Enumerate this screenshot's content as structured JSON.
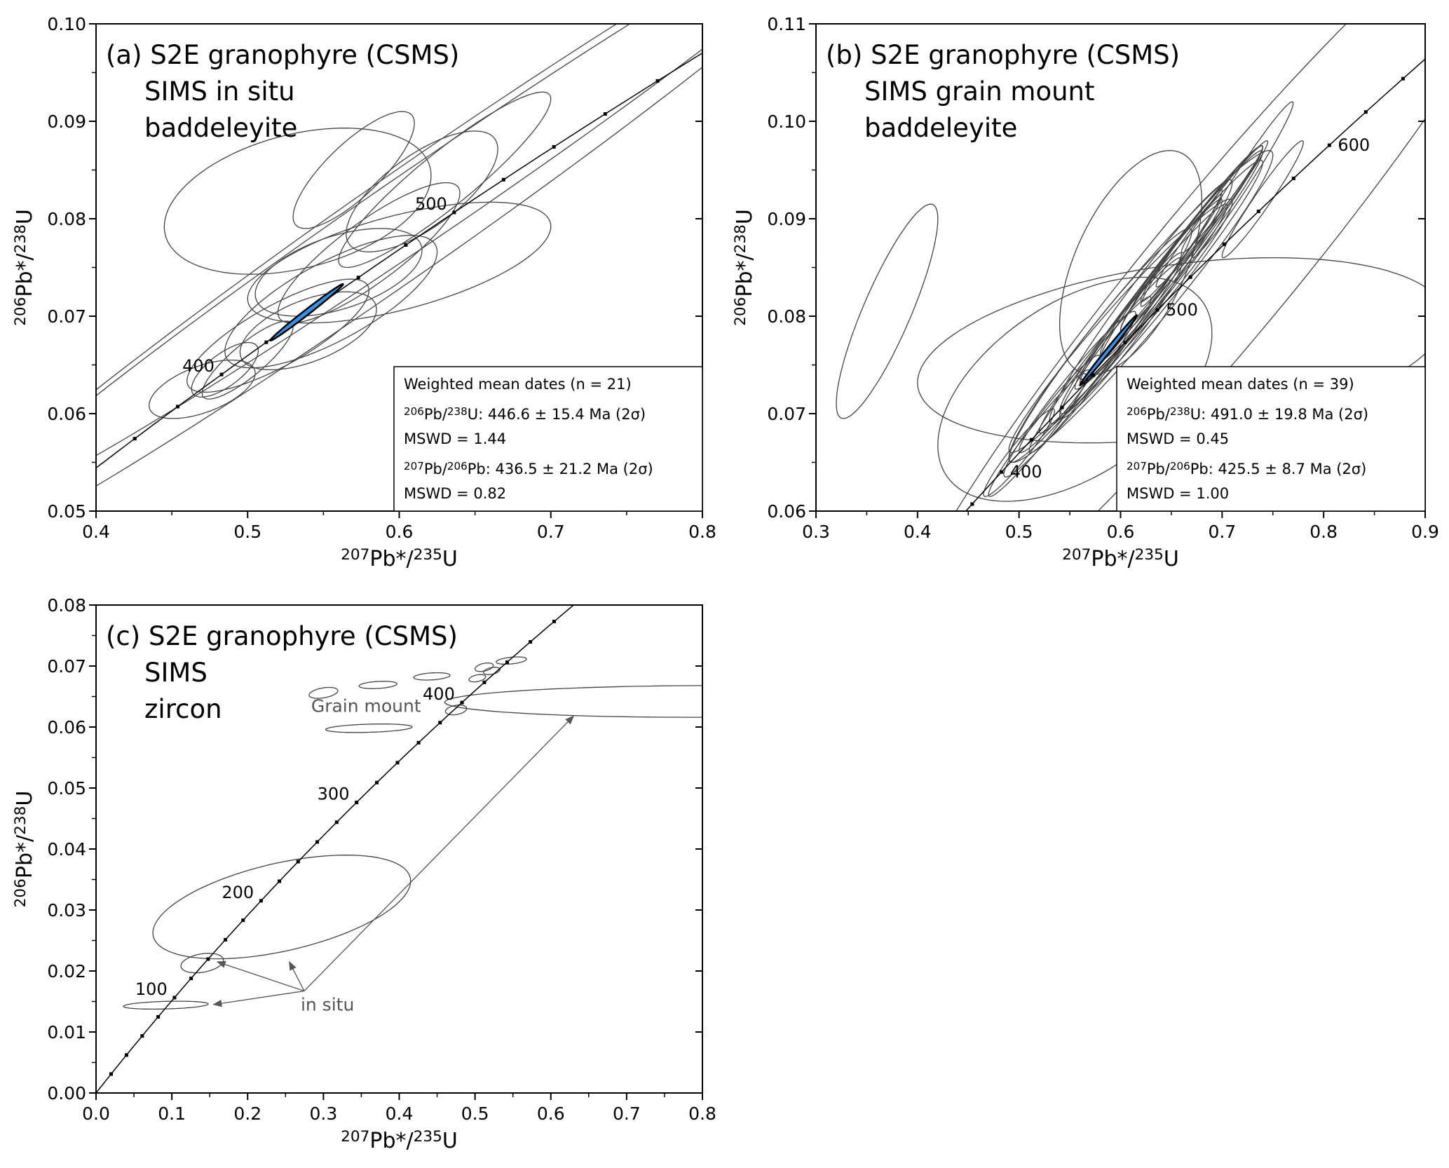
{
  "chart_data": [
    {
      "id": "a",
      "type": "scatter",
      "subtype": "concordia-error-ellipses",
      "title_lines": [
        "(a) S2E granophyre (CSMS)",
        "SIMS in situ",
        "baddeleyite"
      ],
      "xlabel": {
        "sup": "207",
        "main": "Pb*/",
        "sup2": "235",
        "main2": "U"
      },
      "ylabel": {
        "sup": "206",
        "main": "Pb*/",
        "sup2": "238",
        "main2": "U"
      },
      "xlim": [
        0.4,
        0.8
      ],
      "ylim": [
        0.05,
        0.1
      ],
      "xticks": [
        "0.4",
        "0.5",
        "0.6",
        "0.7",
        "0.8"
      ],
      "yticks": [
        "0.05",
        "0.06",
        "0.07",
        "0.08",
        "0.09",
        "0.10"
      ],
      "concordia_age_labels": [
        400,
        500
      ],
      "concordia_tick_interval_ma": 20,
      "mean_color": "#3a8ee6",
      "mean_ellipse": {
        "x": 0.539,
        "sx": 0.024,
        "y": 0.0704,
        "sy": 0.0029,
        "rho": 0.993
      },
      "ellipses": [
        {
          "x": 0.6,
          "sx": 0.33,
          "y": 0.079,
          "sy": 0.036,
          "rho": 0.985
        },
        {
          "x": 0.62,
          "sx": 0.3,
          "y": 0.082,
          "sy": 0.032,
          "rho": 0.99
        },
        {
          "x": 0.533,
          "sx": 0.088,
          "y": 0.0818,
          "sy": 0.0075,
          "rho": 0.35
        },
        {
          "x": 0.6,
          "sx": 0.1,
          "y": 0.0755,
          "sy": 0.0062,
          "rho": 0.6
        },
        {
          "x": 0.615,
          "sx": 0.05,
          "y": 0.0828,
          "sy": 0.0062,
          "rho": 0.7
        },
        {
          "x": 0.555,
          "sx": 0.07,
          "y": 0.0715,
          "sy": 0.0068,
          "rho": 0.75
        },
        {
          "x": 0.52,
          "sx": 0.06,
          "y": 0.068,
          "sy": 0.0058,
          "rho": 0.8
        },
        {
          "x": 0.58,
          "sx": 0.06,
          "y": 0.0765,
          "sy": 0.0072,
          "rho": 0.85
        },
        {
          "x": 0.56,
          "sx": 0.055,
          "y": 0.0745,
          "sy": 0.0045,
          "rho": 0.5
        },
        {
          "x": 0.47,
          "sx": 0.035,
          "y": 0.0625,
          "sy": 0.003,
          "rho": 0.55
        },
        {
          "x": 0.485,
          "sx": 0.022,
          "y": 0.0645,
          "sy": 0.0028,
          "rho": 0.7
        },
        {
          "x": 0.5,
          "sx": 0.03,
          "y": 0.0655,
          "sy": 0.004,
          "rho": 0.85
        },
        {
          "x": 0.54,
          "sx": 0.045,
          "y": 0.0685,
          "sy": 0.004,
          "rho": 0.55
        },
        {
          "x": 0.63,
          "sx": 0.07,
          "y": 0.084,
          "sy": 0.009,
          "rho": 0.92
        },
        {
          "x": 0.57,
          "sx": 0.04,
          "y": 0.085,
          "sy": 0.006,
          "rho": 0.8
        }
      ],
      "legend": {
        "placement": "bottom-right",
        "line1": "Weighted mean dates (n = 21)",
        "r1_sup1": "206",
        "r1_a": "Pb/",
        "r1_sup2": "238",
        "r1_b": "U: 446.6 ± 15.4 Ma (2σ)",
        "mswd1": "MSWD = 1.44",
        "r2_sup1": "207",
        "r2_a": "Pb/",
        "r2_sup2": "206",
        "r2_b": "Pb: 436.5 ± 21.2 Ma (2σ)",
        "mswd2": "MSWD = 0.82"
      }
    },
    {
      "id": "b",
      "type": "scatter",
      "subtype": "concordia-error-ellipses",
      "title_lines": [
        "(b) S2E granophyre (CSMS)",
        "SIMS grain mount",
        "baddeleyite"
      ],
      "xlabel": {
        "sup": "207",
        "main": "Pb*/",
        "sup2": "235",
        "main2": "U"
      },
      "ylabel": {
        "sup": "206",
        "main": "Pb*/",
        "sup2": "238",
        "main2": "U"
      },
      "xlim": [
        0.3,
        0.9
      ],
      "ylim": [
        0.06,
        0.11
      ],
      "xticks": [
        "0.3",
        "0.4",
        "0.5",
        "0.6",
        "0.7",
        "0.8",
        "0.9"
      ],
      "yticks": [
        "0.06",
        "0.07",
        "0.08",
        "0.09",
        "0.10",
        "0.11"
      ],
      "concordia_age_labels": [
        400,
        500,
        600
      ],
      "concordia_tick_interval_ma": 20,
      "mean_color": "#3a8ee6",
      "mean_ellipse": {
        "x": 0.588,
        "sx": 0.028,
        "y": 0.0765,
        "sy": 0.0036,
        "rho": 0.995
      },
      "ellipses": [
        {
          "x": 0.37,
          "sx": 0.05,
          "y": 0.0805,
          "sy": 0.011,
          "rho": 0.86
        },
        {
          "x": 0.66,
          "sx": 0.26,
          "y": 0.0765,
          "sy": 0.0095,
          "rho": 0.35
        },
        {
          "x": 0.555,
          "sx": 0.135,
          "y": 0.0725,
          "sy": 0.0115,
          "rho": 0.5
        },
        {
          "x": 0.61,
          "sx": 0.07,
          "y": 0.0855,
          "sy": 0.0115,
          "rho": 0.55
        },
        {
          "x": 0.7,
          "sx": 0.32,
          "y": 0.085,
          "sy": 0.04,
          "rho": 0.96
        },
        {
          "x": 0.62,
          "sx": 0.13,
          "y": 0.081,
          "sy": 0.016,
          "rho": 0.97
        },
        {
          "x": 0.6,
          "sx": 0.11,
          "y": 0.079,
          "sy": 0.013,
          "rho": 0.975
        },
        {
          "x": 0.64,
          "sx": 0.1,
          "y": 0.083,
          "sy": 0.013,
          "rho": 0.98
        },
        {
          "x": 0.65,
          "sx": 0.09,
          "y": 0.085,
          "sy": 0.012,
          "rho": 0.985
        },
        {
          "x": 0.66,
          "sx": 0.08,
          "y": 0.0865,
          "sy": 0.011,
          "rho": 0.985
        },
        {
          "x": 0.67,
          "sx": 0.07,
          "y": 0.088,
          "sy": 0.0095,
          "rho": 0.985
        },
        {
          "x": 0.63,
          "sx": 0.075,
          "y": 0.082,
          "sy": 0.0095,
          "rho": 0.98
        },
        {
          "x": 0.59,
          "sx": 0.07,
          "y": 0.077,
          "sy": 0.009,
          "rho": 0.98
        },
        {
          "x": 0.57,
          "sx": 0.06,
          "y": 0.074,
          "sy": 0.008,
          "rho": 0.975
        },
        {
          "x": 0.55,
          "sx": 0.065,
          "y": 0.072,
          "sy": 0.0085,
          "rho": 0.97
        },
        {
          "x": 0.52,
          "sx": 0.05,
          "y": 0.068,
          "sy": 0.0065,
          "rho": 0.97
        },
        {
          "x": 0.5,
          "sx": 0.035,
          "y": 0.066,
          "sy": 0.0045,
          "rho": 0.95
        },
        {
          "x": 0.68,
          "sx": 0.06,
          "y": 0.0895,
          "sy": 0.008,
          "rho": 0.985
        },
        {
          "x": 0.69,
          "sx": 0.055,
          "y": 0.0905,
          "sy": 0.0075,
          "rho": 0.985
        },
        {
          "x": 0.65,
          "sx": 0.05,
          "y": 0.0855,
          "sy": 0.007,
          "rho": 0.985
        },
        {
          "x": 0.61,
          "sx": 0.05,
          "y": 0.08,
          "sy": 0.0065,
          "rho": 0.98
        },
        {
          "x": 0.6,
          "sx": 0.06,
          "y": 0.0775,
          "sy": 0.008,
          "rho": 0.97
        },
        {
          "x": 0.7,
          "sx": 0.04,
          "y": 0.092,
          "sy": 0.0055,
          "rho": 0.98
        },
        {
          "x": 0.72,
          "sx": 0.05,
          "y": 0.094,
          "sy": 0.008,
          "rho": 0.98
        },
        {
          "x": 0.58,
          "sx": 0.09,
          "y": 0.077,
          "sy": 0.012,
          "rho": 0.97
        },
        {
          "x": 0.62,
          "sx": 0.09,
          "y": 0.0815,
          "sy": 0.0125,
          "rho": 0.975
        },
        {
          "x": 0.74,
          "sx": 0.04,
          "y": 0.092,
          "sy": 0.006,
          "rho": 0.97
        },
        {
          "x": 0.54,
          "sx": 0.04,
          "y": 0.071,
          "sy": 0.005,
          "rho": 0.96
        },
        {
          "x": 0.64,
          "sx": 0.06,
          "y": 0.084,
          "sy": 0.008,
          "rho": 0.98
        },
        {
          "x": 0.66,
          "sx": 0.04,
          "y": 0.087,
          "sy": 0.006,
          "rho": 0.98
        }
      ],
      "legend": {
        "placement": "bottom-right",
        "line1": "Weighted mean dates (n = 39)",
        "r1_sup1": "206",
        "r1_a": "Pb/",
        "r1_sup2": "238",
        "r1_b": "U: 491.0 ± 19.8 Ma (2σ)",
        "mswd1": "MSWD = 0.45",
        "r2_sup1": "207",
        "r2_a": "Pb/",
        "r2_sup2": "206",
        "r2_b": "Pb: 425.5 ± 8.7 Ma (2σ)",
        "mswd2": "MSWD = 1.00"
      }
    },
    {
      "id": "c",
      "type": "scatter",
      "subtype": "concordia-error-ellipses",
      "title_lines": [
        "(c) S2E granophyre (CSMS)",
        "SIMS",
        "zircon"
      ],
      "xlabel": {
        "sup": "207",
        "main": "Pb*/",
        "sup2": "235",
        "main2": "U"
      },
      "ylabel": {
        "sup": "206",
        "main": "Pb*/",
        "sup2": "238",
        "main2": "U"
      },
      "xlim": [
        0.0,
        0.8
      ],
      "ylim": [
        0.0,
        0.08
      ],
      "xticks": [
        "0.0",
        "0.1",
        "0.2",
        "0.3",
        "0.4",
        "0.5",
        "0.6",
        "0.7",
        "0.8"
      ],
      "yticks": [
        "0.00",
        "0.01",
        "0.02",
        "0.03",
        "0.04",
        "0.05",
        "0.06",
        "0.07",
        "0.08"
      ],
      "concordia_age_labels": [
        100,
        200,
        300,
        400
      ],
      "concordia_tick_interval_ma": 20,
      "ellipses": [
        {
          "x": 0.245,
          "sx": 0.17,
          "y": 0.0305,
          "sy": 0.0085,
          "rho": 0.5
        },
        {
          "x": 0.14,
          "sx": 0.028,
          "y": 0.0213,
          "sy": 0.0016,
          "rho": 0.3
        },
        {
          "x": 0.092,
          "sx": 0.056,
          "y": 0.0144,
          "sy": 0.00065,
          "rho": 0.3
        },
        {
          "x": 0.8,
          "sx": 0.34,
          "y": 0.0642,
          "sy": 0.0026,
          "rho": 0.05
        },
        {
          "x": 0.3,
          "sx": 0.019,
          "y": 0.0656,
          "sy": 0.0009,
          "rho": 0.4
        },
        {
          "x": 0.372,
          "sx": 0.025,
          "y": 0.0669,
          "sy": 0.0006,
          "rho": 0.3
        },
        {
          "x": 0.443,
          "sx": 0.024,
          "y": 0.0683,
          "sy": 0.0006,
          "rho": 0.3
        },
        {
          "x": 0.512,
          "sx": 0.012,
          "y": 0.0698,
          "sy": 0.0007,
          "rho": 0.4
        },
        {
          "x": 0.548,
          "sx": 0.02,
          "y": 0.0709,
          "sy": 0.0006,
          "rho": 0.4
        },
        {
          "x": 0.503,
          "sx": 0.011,
          "y": 0.068,
          "sy": 0.0006,
          "rho": 0.4
        },
        {
          "x": 0.522,
          "sx": 0.011,
          "y": 0.0692,
          "sy": 0.0006,
          "rho": 0.4
        },
        {
          "x": 0.36,
          "sx": 0.057,
          "y": 0.0598,
          "sy": 0.0007,
          "rho": 0.3
        },
        {
          "x": 0.475,
          "sx": 0.014,
          "y": 0.0628,
          "sy": 0.0008,
          "rho": 0.3
        }
      ],
      "annotations": [
        {
          "text": "Grain mount",
          "x": 0.39,
          "y": 0.0625
        },
        {
          "text": "in situ",
          "x": 0.27,
          "y": 0.0135,
          "arrows_to": [
            [
              0.155,
              0.0145
            ],
            [
              0.16,
              0.0215
            ],
            [
              0.255,
              0.0215
            ],
            [
              0.63,
              0.0618
            ]
          ]
        }
      ]
    }
  ]
}
